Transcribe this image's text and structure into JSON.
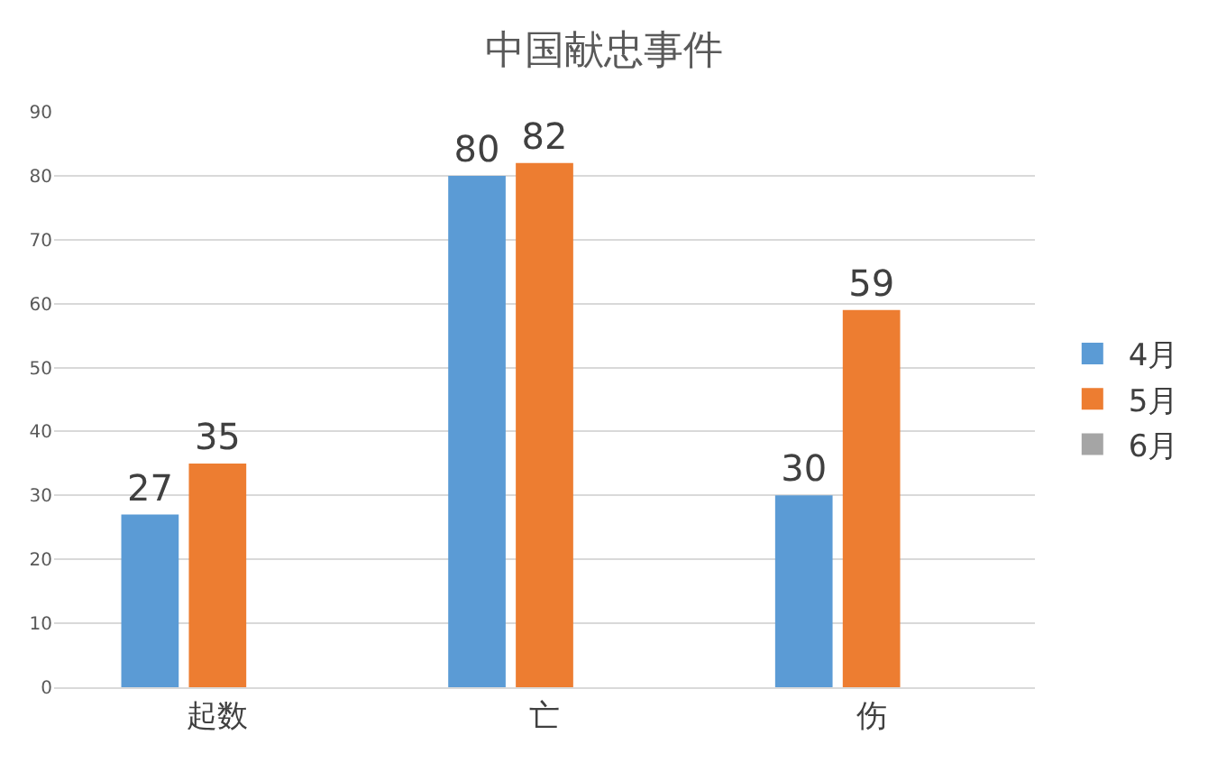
{
  "chart_data": {
    "type": "bar",
    "title": "中国献忠事件",
    "categories": [
      "起数",
      "亡",
      "伤"
    ],
    "series": [
      {
        "name": "4月",
        "color": "#5b9bd5",
        "values": [
          27,
          80,
          30
        ]
      },
      {
        "name": "5月",
        "color": "#ed7d31",
        "values": [
          35,
          82,
          59
        ]
      },
      {
        "name": "6月",
        "color": "#a5a5a5",
        "values": [
          null,
          null,
          null
        ]
      }
    ],
    "ylim": [
      0,
      90
    ],
    "yticks": [
      0,
      10,
      20,
      30,
      40,
      50,
      60,
      70,
      80,
      90
    ],
    "grid": "y",
    "legend": "right",
    "data_labels": true
  }
}
